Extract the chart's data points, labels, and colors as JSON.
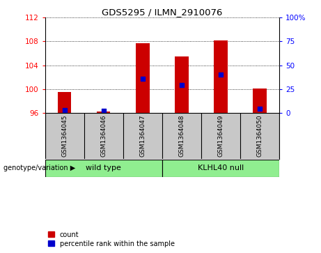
{
  "title": "GDS5295 / ILMN_2910076",
  "samples": [
    "GSM1364045",
    "GSM1364046",
    "GSM1364047",
    "GSM1364048",
    "GSM1364049",
    "GSM1364050"
  ],
  "counts": [
    99.5,
    96.15,
    107.7,
    105.5,
    108.2,
    100.05
  ],
  "percentile_ranks": [
    3.0,
    2.0,
    36.0,
    29.0,
    40.0,
    4.0
  ],
  "bar_bottom": 96,
  "ylim_left": [
    96,
    112
  ],
  "ylim_right": [
    0,
    100
  ],
  "yticks_left": [
    96,
    100,
    104,
    108,
    112
  ],
  "yticks_right": [
    0,
    25,
    50,
    75,
    100
  ],
  "yticklabels_right": [
    "0",
    "25",
    "50",
    "75",
    "100%"
  ],
  "bar_color": "#cc0000",
  "dot_color": "#0000cc",
  "grid_linestyle": "dotted",
  "group_label_1": "wild type",
  "group_label_2": "KLHL40 null",
  "group_color": "#90ee90",
  "cat_bg_color": "#c8c8c8",
  "bar_width": 0.35,
  "legend_items": [
    "count",
    "percentile rank within the sample"
  ],
  "legend_colors": [
    "#cc0000",
    "#0000cc"
  ],
  "genotype_label": "genotype/variation"
}
